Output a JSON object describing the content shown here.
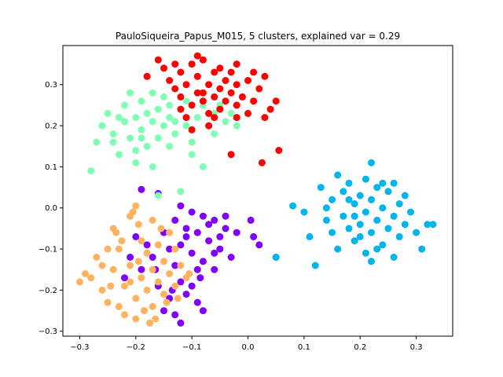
{
  "chart_data": {
    "type": "scatter",
    "title": "PauloSiqueira_Papus_M015, 5 clusters, explained var = 0.29",
    "xlabel": "",
    "ylabel": "",
    "xlim": [
      -0.33,
      0.365
    ],
    "ylim": [
      -0.312,
      0.395
    ],
    "xticks": [
      -0.3,
      -0.2,
      -0.1,
      0.0,
      0.1,
      0.2,
      0.3
    ],
    "xtick_labels": [
      "−0.3",
      "−0.2",
      "−0.1",
      "0.0",
      "0.1",
      "0.2",
      "0.3"
    ],
    "yticks": [
      -0.3,
      -0.2,
      -0.1,
      0.0,
      0.1,
      0.2,
      0.3
    ],
    "ytick_labels": [
      "−0.3",
      "−0.2",
      "−0.1",
      "0.0",
      "0.1",
      "0.2",
      "0.3"
    ],
    "grid": false,
    "legend": "none",
    "series": [
      {
        "color": "#8000ff",
        "points": [
          [
            -0.19,
            0.045
          ],
          [
            -0.16,
            0.035
          ],
          [
            -0.12,
            0.005
          ],
          [
            -0.1,
            -0.01
          ],
          [
            -0.08,
            -0.02
          ],
          [
            -0.06,
            -0.03
          ],
          [
            -0.04,
            -0.05
          ],
          [
            -0.02,
            -0.06
          ],
          [
            0.01,
            -0.07
          ],
          [
            0.02,
            -0.09
          ],
          [
            -0.13,
            -0.03
          ],
          [
            -0.11,
            -0.05
          ],
          [
            -0.09,
            -0.06
          ],
          [
            -0.07,
            -0.08
          ],
          [
            -0.05,
            -0.1
          ],
          [
            -0.03,
            -0.12
          ],
          [
            -0.12,
            -0.09
          ],
          [
            -0.1,
            -0.11
          ],
          [
            -0.08,
            -0.13
          ],
          [
            -0.06,
            -0.15
          ],
          [
            -0.15,
            -0.06
          ],
          [
            -0.14,
            -0.1
          ],
          [
            -0.13,
            -0.14
          ],
          [
            -0.12,
            -0.18
          ],
          [
            -0.11,
            -0.21
          ],
          [
            -0.09,
            -0.23
          ],
          [
            -0.08,
            -0.25
          ],
          [
            -0.16,
            -0.19
          ],
          [
            -0.14,
            -0.22
          ],
          [
            -0.13,
            -0.26
          ],
          [
            -0.12,
            -0.28
          ],
          [
            -0.17,
            -0.12
          ],
          [
            -0.18,
            -0.09
          ],
          [
            -0.19,
            -0.15
          ],
          [
            -0.2,
            -0.07
          ],
          [
            -0.21,
            -0.12
          ],
          [
            -0.22,
            -0.17
          ],
          [
            -0.05,
            -0.07
          ],
          [
            -0.04,
            -0.02
          ],
          [
            -0.07,
            -0.04
          ],
          [
            -0.09,
            -0.15
          ],
          [
            -0.1,
            -0.19
          ],
          [
            -0.15,
            -0.25
          ],
          [
            -0.11,
            -0.07
          ],
          [
            -0.06,
            -0.11
          ],
          [
            0.005,
            -0.03
          ],
          [
            0.05,
            -0.12
          ],
          [
            -0.135,
            -0.2
          ],
          [
            -0.165,
            -0.15
          ],
          [
            -0.085,
            -0.17
          ]
        ]
      },
      {
        "color": "#ffb360",
        "points": [
          [
            -0.28,
            -0.17
          ],
          [
            -0.27,
            -0.12
          ],
          [
            -0.26,
            -0.2
          ],
          [
            -0.25,
            -0.23
          ],
          [
            -0.24,
            -0.15
          ],
          [
            -0.24,
            -0.05
          ],
          [
            -0.23,
            -0.1
          ],
          [
            -0.22,
            -0.19
          ],
          [
            -0.22,
            -0.26
          ],
          [
            -0.21,
            -0.02
          ],
          [
            -0.21,
            -0.14
          ],
          [
            -0.2,
            -0.22
          ],
          [
            -0.2,
            -0.27
          ],
          [
            -0.19,
            -0.08
          ],
          [
            -0.19,
            -0.17
          ],
          [
            -0.18,
            -0.11
          ],
          [
            -0.18,
            -0.2
          ],
          [
            -0.17,
            -0.03
          ],
          [
            -0.17,
            -0.15
          ],
          [
            -0.17,
            -0.24
          ],
          [
            -0.16,
            -0.09
          ],
          [
            -0.16,
            -0.18
          ],
          [
            -0.15,
            -0.13
          ],
          [
            -0.15,
            -0.21
          ],
          [
            -0.14,
            -0.06
          ],
          [
            -0.14,
            -0.16
          ],
          [
            -0.13,
            -0.1
          ],
          [
            -0.13,
            -0.19
          ],
          [
            -0.12,
            -0.14
          ],
          [
            -0.11,
            -0.17
          ],
          [
            -0.3,
            -0.18
          ],
          [
            -0.29,
            -0.16
          ],
          [
            -0.26,
            -0.14
          ],
          [
            -0.25,
            -0.1
          ],
          [
            -0.235,
            -0.06
          ],
          [
            -0.205,
            -0.01
          ],
          [
            -0.2,
            0.005
          ],
          [
            -0.195,
            -0.04
          ],
          [
            -0.185,
            -0.25
          ],
          [
            -0.175,
            -0.28
          ],
          [
            -0.165,
            -0.27
          ],
          [
            -0.23,
            -0.24
          ],
          [
            -0.21,
            -0.18
          ],
          [
            -0.245,
            -0.19
          ],
          [
            -0.155,
            -0.05
          ],
          [
            -0.145,
            -0.23
          ],
          [
            -0.125,
            -0.22
          ],
          [
            -0.105,
            -0.16
          ],
          [
            -0.195,
            -0.13
          ],
          [
            -0.225,
            -0.08
          ]
        ]
      },
      {
        "color": "#00b5eb",
        "points": [
          [
            0.08,
            0.005
          ],
          [
            0.1,
            -0.01
          ],
          [
            0.11,
            -0.07
          ],
          [
            0.12,
            -0.14
          ],
          [
            0.13,
            0.05
          ],
          [
            0.14,
            -0.03
          ],
          [
            0.15,
            0.02
          ],
          [
            0.15,
            -0.06
          ],
          [
            0.16,
            0.08
          ],
          [
            0.16,
            -0.1
          ],
          [
            0.17,
            0.04
          ],
          [
            0.17,
            -0.02
          ],
          [
            0.18,
            0.06
          ],
          [
            0.18,
            -0.05
          ],
          [
            0.19,
            0.01
          ],
          [
            0.19,
            -0.08
          ],
          [
            0.2,
            0.03
          ],
          [
            0.2,
            -0.04
          ],
          [
            0.21,
            0.07
          ],
          [
            0.21,
            -0.01
          ],
          [
            0.21,
            -0.11
          ],
          [
            0.22,
            0.11
          ],
          [
            0.22,
            0.02
          ],
          [
            0.22,
            -0.06
          ],
          [
            0.23,
            0.05
          ],
          [
            0.23,
            -0.03
          ],
          [
            0.24,
            0.0
          ],
          [
            0.24,
            -0.09
          ],
          [
            0.25,
            0.04
          ],
          [
            0.25,
            -0.05
          ],
          [
            0.26,
            0.06
          ],
          [
            0.26,
            -0.02
          ],
          [
            0.27,
            0.01
          ],
          [
            0.27,
            -0.07
          ],
          [
            0.28,
            0.03
          ],
          [
            0.28,
            -0.04
          ],
          [
            0.29,
            -0.01
          ],
          [
            0.3,
            -0.06
          ],
          [
            0.31,
            -0.1
          ],
          [
            0.32,
            -0.04
          ],
          [
            0.33,
            -0.04
          ],
          [
            0.05,
            -0.12
          ],
          [
            0.19,
            -0.02
          ],
          [
            0.2,
            -0.07
          ],
          [
            0.23,
            -0.1
          ],
          [
            0.24,
            0.06
          ],
          [
            0.18,
            0.02
          ],
          [
            0.26,
            -0.12
          ],
          [
            0.22,
            -0.13
          ],
          [
            0.14,
            0.0
          ]
        ]
      },
      {
        "color": "#80ffb4",
        "points": [
          [
            -0.28,
            0.09
          ],
          [
            -0.27,
            0.16
          ],
          [
            -0.26,
            0.2
          ],
          [
            -0.25,
            0.23
          ],
          [
            -0.24,
            0.18
          ],
          [
            -0.23,
            0.13
          ],
          [
            -0.22,
            0.21
          ],
          [
            -0.22,
            0.25
          ],
          [
            -0.21,
            0.17
          ],
          [
            -0.2,
            0.22
          ],
          [
            -0.2,
            0.14
          ],
          [
            -0.19,
            0.26
          ],
          [
            -0.19,
            0.19
          ],
          [
            -0.18,
            0.15
          ],
          [
            -0.18,
            0.23
          ],
          [
            -0.17,
            0.21
          ],
          [
            -0.17,
            0.1
          ],
          [
            -0.16,
            0.24
          ],
          [
            -0.16,
            0.17
          ],
          [
            -0.15,
            0.2
          ],
          [
            -0.14,
            0.22
          ],
          [
            -0.14,
            0.15
          ],
          [
            -0.13,
            0.18
          ],
          [
            -0.12,
            0.24
          ],
          [
            -0.11,
            0.2
          ],
          [
            -0.1,
            0.16
          ],
          [
            -0.09,
            0.22
          ],
          [
            -0.08,
            0.25
          ],
          [
            -0.07,
            0.2
          ],
          [
            -0.06,
            0.23
          ],
          [
            -0.05,
            0.25
          ],
          [
            -0.04,
            0.21
          ],
          [
            -0.08,
            0.1
          ],
          [
            -0.12,
            0.04
          ],
          [
            -0.16,
            0.03
          ],
          [
            -0.21,
            0.28
          ],
          [
            -0.23,
            0.22
          ],
          [
            -0.26,
            0.2
          ],
          [
            -0.2,
            0.11
          ],
          [
            -0.15,
            0.27
          ],
          [
            -0.11,
            0.26
          ],
          [
            -0.13,
            0.21
          ],
          [
            -0.17,
            0.28
          ],
          [
            -0.24,
            0.16
          ],
          [
            -0.19,
            0.17
          ],
          [
            -0.03,
            0.23
          ],
          [
            -0.06,
            0.18
          ],
          [
            -0.1,
            0.13
          ],
          [
            -0.02,
            0.2
          ],
          [
            -0.14,
            0.25
          ]
        ]
      },
      {
        "color": "#ff0000",
        "points": [
          [
            -0.18,
            0.32
          ],
          [
            -0.15,
            0.34
          ],
          [
            -0.14,
            0.31
          ],
          [
            -0.13,
            0.29
          ],
          [
            -0.12,
            0.27
          ],
          [
            -0.12,
            0.33
          ],
          [
            -0.11,
            0.3
          ],
          [
            -0.1,
            0.35
          ],
          [
            -0.1,
            0.25
          ],
          [
            -0.09,
            0.28
          ],
          [
            -0.09,
            0.32
          ],
          [
            -0.08,
            0.26
          ],
          [
            -0.08,
            0.36
          ],
          [
            -0.07,
            0.3
          ],
          [
            -0.07,
            0.23
          ],
          [
            -0.06,
            0.33
          ],
          [
            -0.06,
            0.27
          ],
          [
            -0.05,
            0.29
          ],
          [
            -0.05,
            0.24
          ],
          [
            -0.04,
            0.31
          ],
          [
            -0.04,
            0.26
          ],
          [
            -0.03,
            0.28
          ],
          [
            -0.03,
            0.33
          ],
          [
            -0.02,
            0.25
          ],
          [
            -0.02,
            0.3
          ],
          [
            -0.01,
            0.27
          ],
          [
            0.0,
            0.23
          ],
          [
            0.0,
            0.31
          ],
          [
            0.01,
            0.26
          ],
          [
            0.02,
            0.29
          ],
          [
            0.03,
            0.32
          ],
          [
            0.04,
            0.24
          ],
          [
            0.05,
            0.26
          ],
          [
            0.055,
            0.14
          ],
          [
            0.025,
            0.11
          ],
          [
            -0.03,
            0.13
          ],
          [
            -0.1,
            0.19
          ],
          [
            -0.11,
            0.22
          ],
          [
            -0.07,
            0.2
          ],
          [
            -0.09,
            0.37
          ],
          [
            -0.05,
            0.34
          ],
          [
            -0.02,
            0.35
          ],
          [
            0.01,
            0.33
          ],
          [
            -0.13,
            0.35
          ],
          [
            -0.16,
            0.36
          ],
          [
            -0.12,
            0.24
          ],
          [
            -0.06,
            0.22
          ],
          [
            -0.02,
            0.22
          ],
          [
            0.03,
            0.22
          ],
          [
            -0.08,
            0.28
          ]
        ]
      }
    ]
  }
}
